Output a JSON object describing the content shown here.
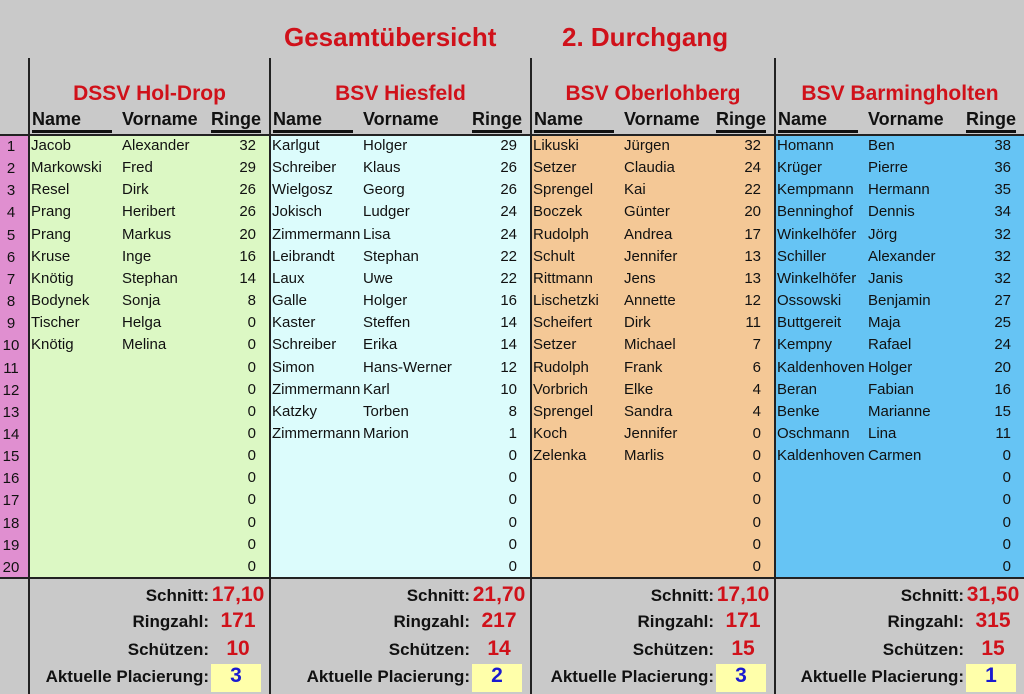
{
  "title": {
    "part1": "Gesamtübersicht",
    "part2": "2. Durchgang"
  },
  "columns": {
    "name": "Name",
    "vorname": "Vorname",
    "ringe": "Ringe"
  },
  "footer_labels": {
    "schnitt": "Schnitt:",
    "ringzahl": "Ringzahl:",
    "schuetzen": "Schützen:",
    "placierung": "Aktuelle Placierung:"
  },
  "row_numbers": [
    "1",
    "2",
    "3",
    "4",
    "5",
    "6",
    "7",
    "8",
    "9",
    "10",
    "11",
    "12",
    "13",
    "14",
    "15",
    "16",
    "17",
    "18",
    "19",
    "20"
  ],
  "colors": {
    "title_red": "#d0111a",
    "rownum_pink": "#e08fd0",
    "place_yellow": "#ffffaa",
    "place_blue": "#1a1ad0"
  },
  "clubs": [
    {
      "name": "DSSV Hol-Drop",
      "color": "#dcf8c4",
      "rows": [
        [
          "Jacob",
          "Alexander",
          "32"
        ],
        [
          "Markowski",
          "Fred",
          "29"
        ],
        [
          "Resel",
          "Dirk",
          "26"
        ],
        [
          "Prang",
          "Heribert",
          "26"
        ],
        [
          "Prang",
          "Markus",
          "20"
        ],
        [
          "Kruse",
          "Inge",
          "16"
        ],
        [
          "Knötig",
          "Stephan",
          "14"
        ],
        [
          "Bodynek",
          "Sonja",
          "8"
        ],
        [
          "Tischer",
          "Helga",
          "0"
        ],
        [
          "Knötig",
          "Melina",
          "0"
        ],
        [
          "",
          "",
          "0"
        ],
        [
          "",
          "",
          "0"
        ],
        [
          "",
          "",
          "0"
        ],
        [
          "",
          "",
          "0"
        ],
        [
          "",
          "",
          "0"
        ],
        [
          "",
          "",
          "0"
        ],
        [
          "",
          "",
          "0"
        ],
        [
          "",
          "",
          "0"
        ],
        [
          "",
          "",
          "0"
        ],
        [
          "",
          "",
          "0"
        ]
      ],
      "schnitt": "17,10",
      "ringzahl": "171",
      "schuetzen": "10",
      "placierung": "3"
    },
    {
      "name": "BSV Hiesfeld",
      "color": "#dcfcfc",
      "rows": [
        [
          "Karlgut",
          "Holger",
          "29"
        ],
        [
          "Schreiber",
          "Klaus",
          "26"
        ],
        [
          "Wielgosz",
          "Georg",
          "26"
        ],
        [
          "Jokisch",
          "Ludger",
          "24"
        ],
        [
          "Zimmermann",
          "Lisa",
          "24"
        ],
        [
          "Leibrandt",
          "Stephan",
          "22"
        ],
        [
          "Laux",
          "Uwe",
          "22"
        ],
        [
          "Galle",
          "Holger",
          "16"
        ],
        [
          "Kaster",
          "Steffen",
          "14"
        ],
        [
          "Schreiber",
          "Erika",
          "14"
        ],
        [
          "Simon",
          "Hans-Werner",
          "12"
        ],
        [
          "Zimmermann",
          "Karl",
          "10"
        ],
        [
          "Katzky",
          "Torben",
          "8"
        ],
        [
          "Zimmermann",
          "Marion",
          "1"
        ],
        [
          "",
          "",
          "0"
        ],
        [
          "",
          "",
          "0"
        ],
        [
          "",
          "",
          "0"
        ],
        [
          "",
          "",
          "0"
        ],
        [
          "",
          "",
          "0"
        ],
        [
          "",
          "",
          "0"
        ]
      ],
      "schnitt": "21,70",
      "ringzahl": "217",
      "schuetzen": "14",
      "placierung": "2"
    },
    {
      "name": "BSV Oberlohberg",
      "color": "#f4c896",
      "rows": [
        [
          "Likuski",
          "Jürgen",
          "32"
        ],
        [
          "Setzer",
          "Claudia",
          "24"
        ],
        [
          "Sprengel",
          "Kai",
          "22"
        ],
        [
          "Boczek",
          "Günter",
          "20"
        ],
        [
          "Rudolph",
          "Andrea",
          "17"
        ],
        [
          "Schult",
          "Jennifer",
          "13"
        ],
        [
          "Rittmann",
          "Jens",
          "13"
        ],
        [
          "Lischetzki",
          "Annette",
          "12"
        ],
        [
          "Scheifert",
          "Dirk",
          "11"
        ],
        [
          "Setzer",
          "Michael",
          "7"
        ],
        [
          "Rudolph",
          "Frank",
          "6"
        ],
        [
          "Vorbrich",
          "Elke",
          "4"
        ],
        [
          "Sprengel",
          "Sandra",
          "4"
        ],
        [
          "Koch",
          "Jennifer",
          "0"
        ],
        [
          "Zelenka",
          "Marlis",
          "0"
        ],
        [
          "",
          "",
          "0"
        ],
        [
          "",
          "",
          "0"
        ],
        [
          "",
          "",
          "0"
        ],
        [
          "",
          "",
          "0"
        ],
        [
          "",
          "",
          "0"
        ]
      ],
      "schnitt": "17,10",
      "ringzahl": "171",
      "schuetzen": "15",
      "placierung": "3"
    },
    {
      "name": "BSV Barmingholten",
      "color": "#66c4f4",
      "rows": [
        [
          "Homann",
          "Ben",
          "38"
        ],
        [
          "Krüger",
          "Pierre",
          "36"
        ],
        [
          "Kempmann",
          "Hermann",
          "35"
        ],
        [
          "Benninghof",
          "Dennis",
          "34"
        ],
        [
          "Winkelhöfer",
          "Jörg",
          "32"
        ],
        [
          "Schiller",
          "Alexander",
          "32"
        ],
        [
          "Winkelhöfer",
          "Janis",
          "32"
        ],
        [
          "Ossowski",
          "Benjamin",
          "27"
        ],
        [
          "Buttgereit",
          "Maja",
          "25"
        ],
        [
          "Kempny",
          "Rafael",
          "24"
        ],
        [
          "Kaldenhoven",
          "Holger",
          "20"
        ],
        [
          "Beran",
          "Fabian",
          "16"
        ],
        [
          "Benke",
          "Marianne",
          "15"
        ],
        [
          "Oschmann",
          "Lina",
          "11"
        ],
        [
          "Kaldenhoven",
          "Carmen",
          "0"
        ],
        [
          "",
          "",
          "0"
        ],
        [
          "",
          "",
          "0"
        ],
        [
          "",
          "",
          "0"
        ],
        [
          "",
          "",
          "0"
        ],
        [
          "",
          "",
          "0"
        ]
      ],
      "schnitt": "31,50",
      "ringzahl": "315",
      "schuetzen": "15",
      "placierung": "1"
    }
  ]
}
